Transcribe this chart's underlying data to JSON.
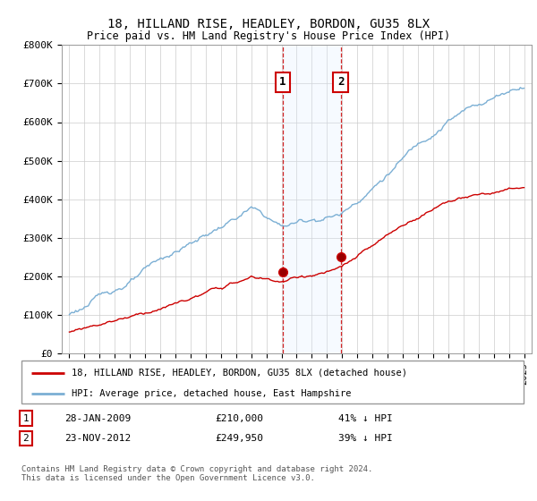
{
  "title": "18, HILLAND RISE, HEADLEY, BORDON, GU35 8LX",
  "subtitle": "Price paid vs. HM Land Registry's House Price Index (HPI)",
  "ylim": [
    0,
    800000
  ],
  "yticks": [
    0,
    100000,
    200000,
    300000,
    400000,
    500000,
    600000,
    700000,
    800000
  ],
  "ytick_labels": [
    "£0",
    "£100K",
    "£200K",
    "£300K",
    "£400K",
    "£500K",
    "£600K",
    "£700K",
    "£800K"
  ],
  "sale1_date": "28-JAN-2009",
  "sale1_price": 210000,
  "sale1_label": "1",
  "sale1_x": 2009.07,
  "sale2_date": "23-NOV-2012",
  "sale2_price": 249950,
  "sale2_label": "2",
  "sale2_x": 2012.9,
  "red_line_label": "18, HILLAND RISE, HEADLEY, BORDON, GU35 8LX (detached house)",
  "blue_line_label": "HPI: Average price, detached house, East Hampshire",
  "footer": "Contains HM Land Registry data © Crown copyright and database right 2024.\nThis data is licensed under the Open Government Licence v3.0.",
  "transaction1_pct": "41% ↓ HPI",
  "transaction2_pct": "39% ↓ HPI",
  "background_color": "#ffffff",
  "plot_bg_color": "#ffffff",
  "grid_color": "#cccccc",
  "red_color": "#cc0000",
  "blue_color": "#7bafd4",
  "shade_color": "#ddeeff",
  "marker_box_color": "#cc0000",
  "xmin": 1994.5,
  "xmax": 2025.5
}
